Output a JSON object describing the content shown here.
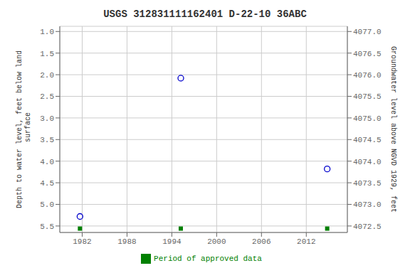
{
  "chart_data": {
    "type": "scatter",
    "title": "USGS 312831111162401 D-22-10 36ABC",
    "y_label": "Depth to water level, feet below land\n surface",
    "y2_label": "Groundwater level above NGVD 1929, feet",
    "xlim": [
      1979.0,
      2017.5
    ],
    "xticks": [
      1982,
      1988,
      1994,
      2000,
      2006,
      2012
    ],
    "ylim": [
      5.65,
      0.88
    ],
    "yticks": [
      {
        "value": 1.0,
        "label": "1.0"
      },
      1.5,
      {
        "value": 2.0,
        "label": "2.0"
      },
      2.5,
      {
        "value": 3.0,
        "label": "3.0"
      },
      3.5,
      {
        "value": 4.0,
        "label": "4.0"
      },
      4.5,
      {
        "value": 5.0,
        "label": "5.0"
      },
      5.5
    ],
    "y2lim": [
      4072.35,
      4077.12
    ],
    "y2ticks": [
      4072.5,
      {
        "value": 4073.0,
        "label": "4073.0"
      },
      4073.5,
      {
        "value": 4074.0,
        "label": "4074.0"
      },
      4074.5,
      {
        "value": 4075.0,
        "label": "4075.0"
      },
      4075.5,
      {
        "value": 4076.0,
        "label": "4076.0"
      },
      4076.5,
      {
        "value": 4077.0,
        "label": "4077.0"
      }
    ],
    "grid": true,
    "legend": "bottom",
    "series": [
      {
        "color": "#0000cc",
        "marker": "circle",
        "x": [
          1981.7,
          1995.2,
          2014.8
        ],
        "values": [
          5.28,
          2.08,
          4.18
        ]
      },
      {
        "name": "Period of approved data",
        "color": "#008000",
        "marker": "square",
        "x": [
          1981.7,
          1995.2,
          2014.8
        ],
        "values": [
          5.56,
          5.56,
          5.56
        ]
      }
    ]
  }
}
